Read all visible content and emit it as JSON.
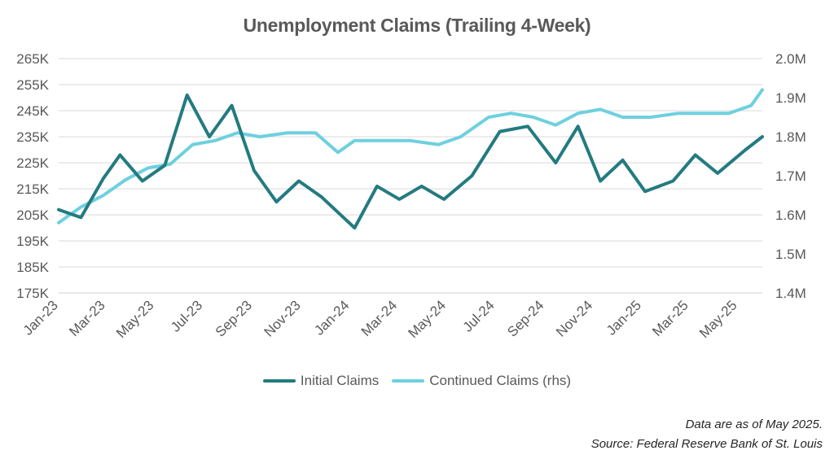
{
  "chart_data": {
    "type": "line",
    "title": "Unemployment Claims (Trailing 4-Week)",
    "x_tick_labels": [
      "Jan-23",
      "Mar-23",
      "May-23",
      "Jul-23",
      "Sep-23",
      "Nov-23",
      "Jan-24",
      "Mar-24",
      "May-24",
      "Jul-24",
      "Sep-24",
      "Nov-24",
      "Jan-25",
      "Mar-25",
      "May-25"
    ],
    "y_left": {
      "ticks": [
        "175K",
        "185K",
        "195K",
        "205K",
        "215K",
        "225K",
        "235K",
        "245K",
        "255K",
        "265K"
      ],
      "range": [
        175000,
        265000
      ]
    },
    "y_right": {
      "ticks": [
        "1.4M",
        "1.5M",
        "1.6M",
        "1.7M",
        "1.8M",
        "1.9M",
        "2.0M"
      ],
      "range": [
        1400000,
        2000000
      ]
    },
    "grid": true,
    "legend_position": "bottom",
    "x_range": [
      "2023-01-07",
      "2025-06-07"
    ],
    "series": [
      {
        "name": "Initial Claims",
        "axis": "left",
        "color": "#237b80",
        "x": [
          "2023-01-07",
          "2023-02-04",
          "2023-03-04",
          "2023-03-25",
          "2023-04-22",
          "2023-05-20",
          "2023-06-17",
          "2023-07-15",
          "2023-08-12",
          "2023-09-09",
          "2023-10-07",
          "2023-11-04",
          "2023-12-02",
          "2023-12-30",
          "2024-01-13",
          "2024-02-10",
          "2024-03-09",
          "2024-04-06",
          "2024-05-04",
          "2024-06-08",
          "2024-07-13",
          "2024-08-17",
          "2024-09-21",
          "2024-10-19",
          "2024-11-16",
          "2024-12-14",
          "2025-01-11",
          "2025-02-15",
          "2025-03-15",
          "2025-04-12",
          "2025-05-17",
          "2025-06-07"
        ],
        "values": [
          207000,
          204000,
          219000,
          228000,
          218000,
          224000,
          251000,
          235000,
          247000,
          222000,
          210000,
          218000,
          212000,
          204000,
          200000,
          216000,
          211000,
          216000,
          211000,
          220000,
          237000,
          239000,
          225000,
          239000,
          218000,
          226000,
          214000,
          218000,
          228000,
          221000,
          230000,
          235000
        ]
      },
      {
        "name": "Continued Claims (rhs)",
        "axis": "right",
        "color": "#6ed0df",
        "x": [
          "2023-01-07",
          "2023-02-04",
          "2023-03-04",
          "2023-04-01",
          "2023-04-29",
          "2023-05-27",
          "2023-06-24",
          "2023-07-22",
          "2023-08-19",
          "2023-09-16",
          "2023-10-21",
          "2023-11-25",
          "2023-12-23",
          "2024-01-13",
          "2024-02-17",
          "2024-03-23",
          "2024-04-27",
          "2024-05-25",
          "2024-06-29",
          "2024-07-27",
          "2024-08-24",
          "2024-09-21",
          "2024-10-19",
          "2024-11-16",
          "2024-12-14",
          "2025-01-18",
          "2025-02-22",
          "2025-03-29",
          "2025-04-26",
          "2025-05-24",
          "2025-06-07"
        ],
        "values": [
          1580000,
          1620000,
          1650000,
          1690000,
          1720000,
          1730000,
          1780000,
          1790000,
          1810000,
          1800000,
          1810000,
          1810000,
          1760000,
          1790000,
          1790000,
          1790000,
          1780000,
          1800000,
          1850000,
          1860000,
          1850000,
          1830000,
          1860000,
          1870000,
          1850000,
          1850000,
          1860000,
          1860000,
          1860000,
          1880000,
          1920000
        ]
      }
    ]
  },
  "footnotes": {
    "as_of": "Data are as of May 2025.",
    "source": "Source: Federal Reserve Bank of St. Louis"
  }
}
